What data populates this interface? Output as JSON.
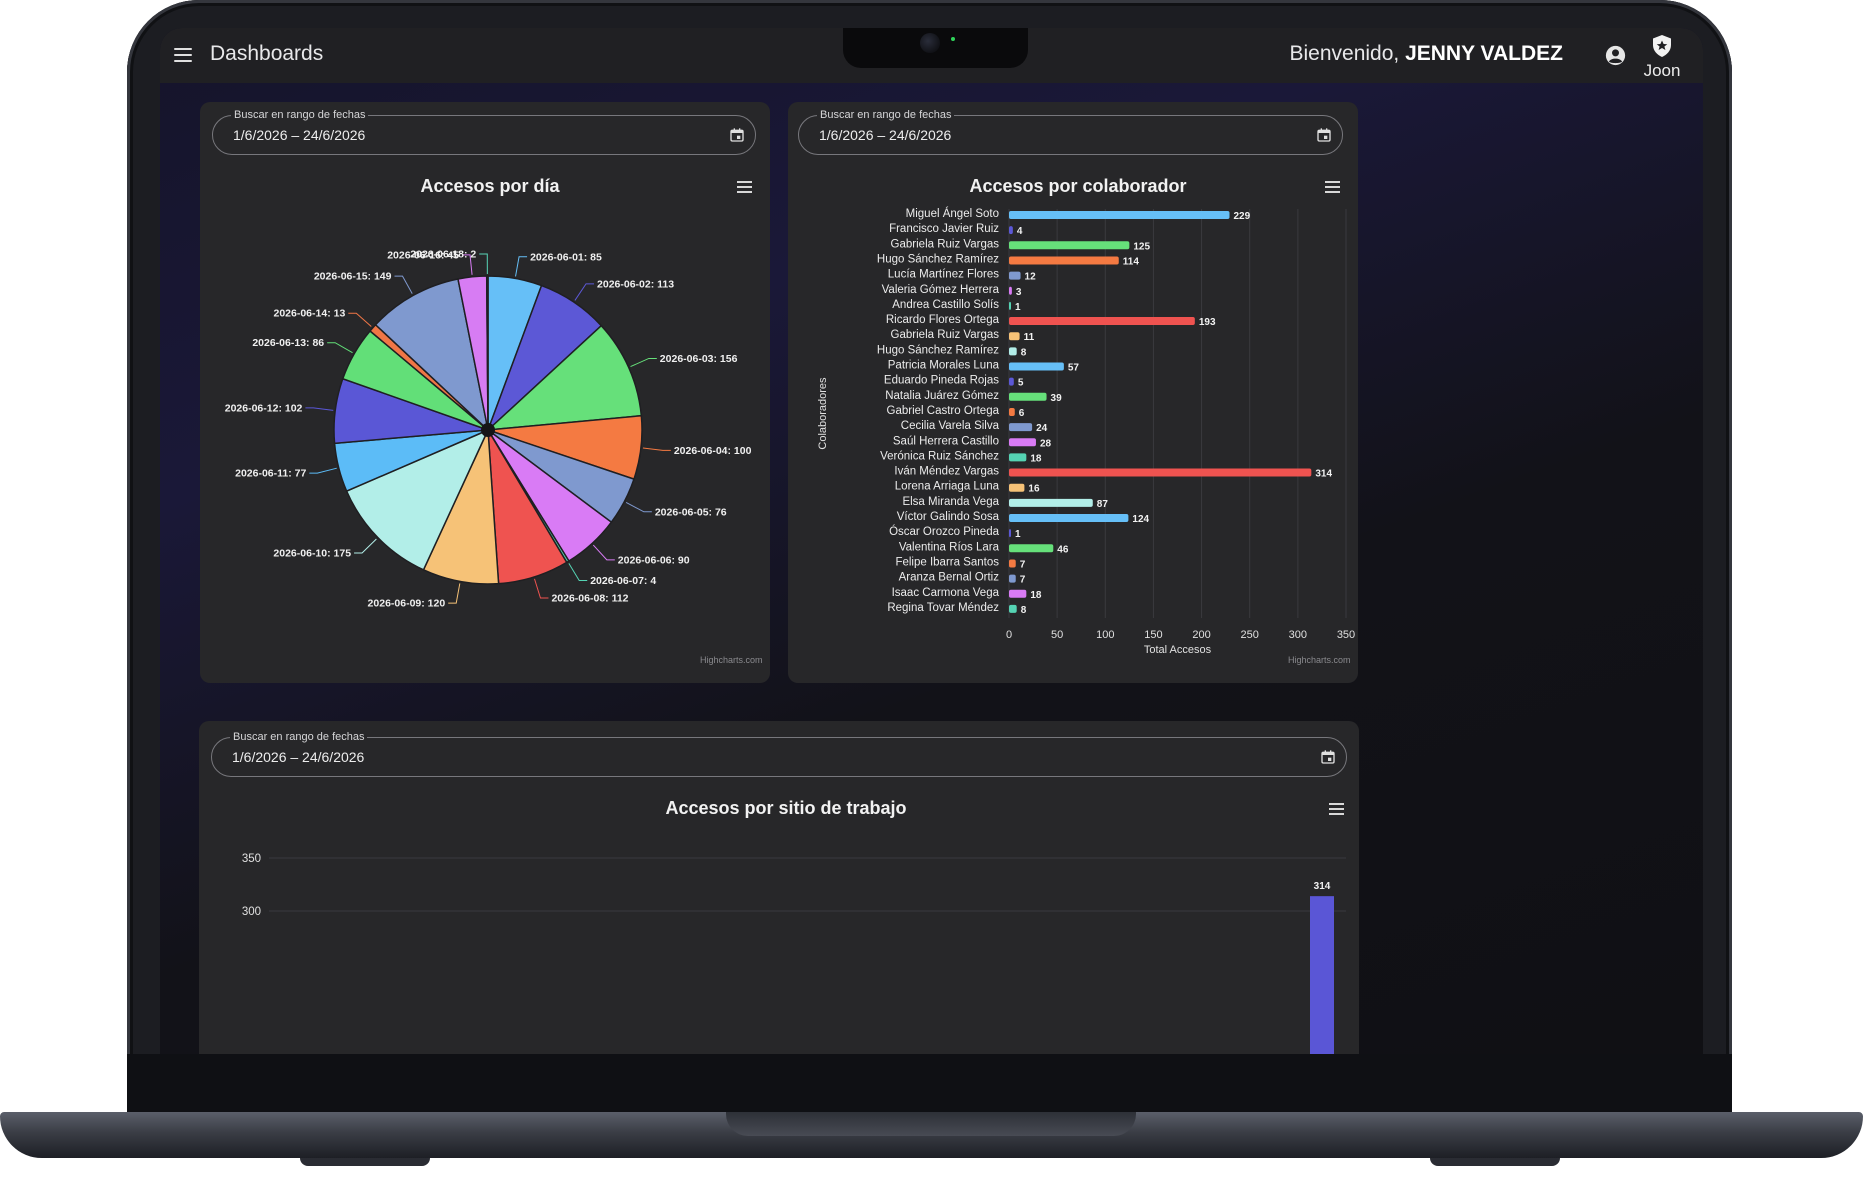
{
  "app": {
    "title": "Dashboards",
    "welcome_prefix": "Bienvenido,",
    "user_name": "JENNY VALDEZ",
    "brand": "Joon"
  },
  "date_filter": {
    "label": "Buscar en rango de fechas",
    "value": "1/6/2026 – 24/6/2026"
  },
  "credits": "Highcharts.com",
  "chart_data": [
    {
      "type": "pie",
      "title": "Accesos por día",
      "categories": [
        "2026-06-01",
        "2026-06-02",
        "2026-06-03",
        "2026-06-04",
        "2026-06-05",
        "2026-06-06",
        "2026-06-07",
        "2026-06-08",
        "2026-06-09",
        "2026-06-10",
        "2026-06-11",
        "2026-06-12",
        "2026-06-13",
        "2026-06-14",
        "2026-06-15",
        "2026-06-16",
        "2026-06-18"
      ],
      "values": [
        85,
        113,
        156,
        100,
        76,
        90,
        4,
        112,
        120,
        175,
        77,
        102,
        86,
        13,
        149,
        45,
        2
      ],
      "colors": [
        "#66bff7",
        "#5c58d6",
        "#66e07a",
        "#f47a42",
        "#7f99cf",
        "#d97bf5",
        "#55d3b3",
        "#ef5350",
        "#f6c277",
        "#b2eee8",
        "#5cbcf7",
        "#5a57d6",
        "#62df78",
        "#f07646",
        "#7f99cf",
        "#d77cf3",
        "#58d6b8"
      ]
    },
    {
      "type": "bar",
      "title": "Accesos por colaborador",
      "xlabel": "Colaboradores",
      "ylabel": "Total Accesos",
      "ylim": [
        0,
        350
      ],
      "ticks": [
        0,
        50,
        100,
        150,
        200,
        250,
        300,
        350
      ],
      "categories": [
        "Miguel Ángel Soto",
        "Francisco Javier Ruiz",
        "Gabriela Ruiz Vargas",
        "Hugo Sánchez Ramírez",
        "Lucía Martínez Flores",
        "Valeria Gómez Herrera",
        "Andrea Castillo Solís",
        "Ricardo Flores Ortega",
        "Gabriela Ruiz Vargas",
        "Hugo Sánchez Ramírez",
        "Patricia Morales Luna",
        "Eduardo Pineda Rojas",
        "Natalia Juárez Gómez",
        "Gabriel Castro Ortega",
        "Cecilia Varela Silva",
        "Saúl Herrera Castillo",
        "Verónica Ruiz Sánchez",
        "Iván Méndez Vargas",
        "Lorena Arriaga Luna",
        "Elsa Miranda Vega",
        "Víctor Galindo Sosa",
        "Óscar Orozco Pineda",
        "Valentina Ríos Lara",
        "Felipe Ibarra Santos",
        "Aranza Bernal Ortiz",
        "Isaac Carmona Vega",
        "Regina Tovar Méndez"
      ],
      "values": [
        229,
        4,
        125,
        114,
        12,
        3,
        1,
        193,
        11,
        8,
        57,
        5,
        39,
        6,
        24,
        28,
        18,
        314,
        16,
        87,
        124,
        1,
        46,
        7,
        7,
        18,
        8
      ],
      "colors": [
        "#66bff7",
        "#5c58d6",
        "#66e07a",
        "#f47a42",
        "#7f99cf",
        "#d97bf5",
        "#55d3b3",
        "#ef5350",
        "#f6c277",
        "#b2eee8",
        "#66bff7",
        "#5c58d6",
        "#66e07a",
        "#f47a42",
        "#7f99cf",
        "#d97bf5",
        "#55d3b3",
        "#ef5350",
        "#f6c277",
        "#b2eee8",
        "#66bff7",
        "#5c58d6",
        "#66e07a",
        "#f47a42",
        "#7f99cf",
        "#d97bf5",
        "#55d3b3"
      ]
    },
    {
      "type": "bar",
      "title": "Accesos por sitio de trabajo",
      "ticks": [
        350,
        300
      ],
      "visible_bar_label": "314",
      "visible_bar_value": 314,
      "bar_color": "#5a56d6"
    }
  ]
}
